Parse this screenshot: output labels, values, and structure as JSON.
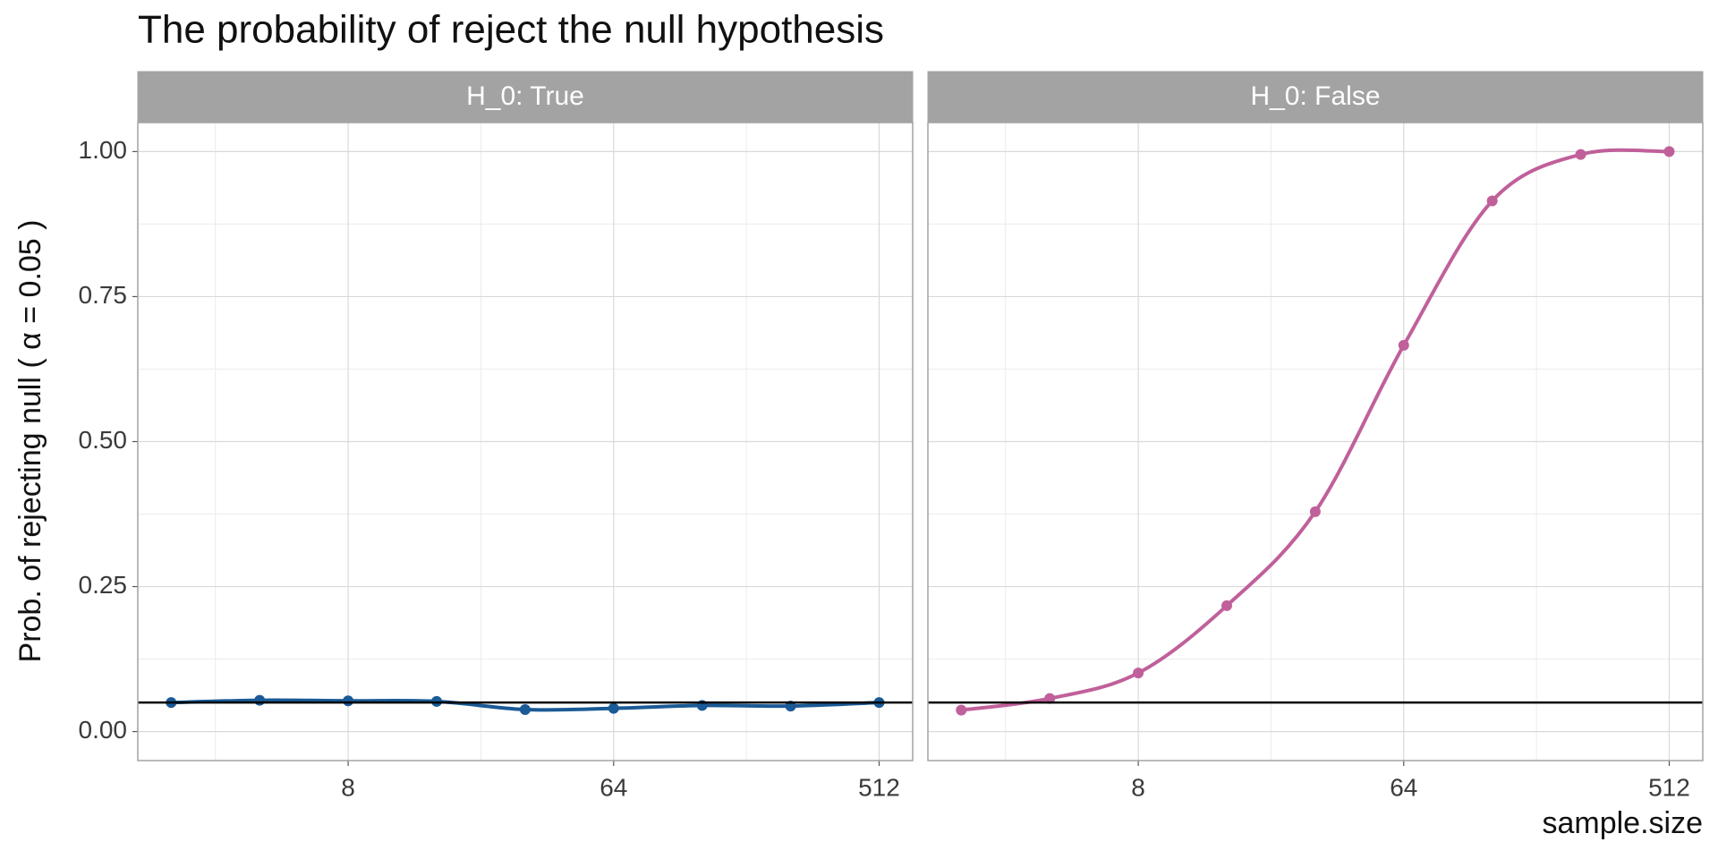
{
  "chart_data": {
    "type": "line",
    "title": "The probability of reject the null hypothesis",
    "xlabel": "sample.size",
    "ylabel": "Prob. of rejecting null ( α  = 0.05 )",
    "x": [
      2,
      4,
      8,
      16,
      32,
      64,
      128,
      256,
      512
    ],
    "series": [
      {
        "name": "H_0:  True",
        "color": "#1a5a96",
        "values": [
          0.05,
          0.054,
          0.053,
          0.052,
          0.038,
          0.04,
          0.045,
          0.044,
          0.05
        ]
      },
      {
        "name": "H_0:  False",
        "color": "#c0609a",
        "values": [
          0.037,
          0.057,
          0.101,
          0.217,
          0.379,
          0.666,
          0.915,
          0.995,
          1.0
        ]
      }
    ],
    "hline": 0.05,
    "xscale": "log2",
    "xlim": [
      1.54,
      666
    ],
    "ylim": [
      -0.05,
      1.05
    ],
    "xticks": [
      8,
      64,
      512
    ],
    "yticks": [
      {
        "value": 0,
        "label": "0.00"
      },
      {
        "value": 0.25,
        "label": "0.25"
      },
      {
        "value": 0.5,
        "label": "0.50"
      },
      {
        "value": 0.75,
        "label": "0.75"
      },
      {
        "value": 1,
        "label": "1.00"
      }
    ],
    "grid": true
  }
}
